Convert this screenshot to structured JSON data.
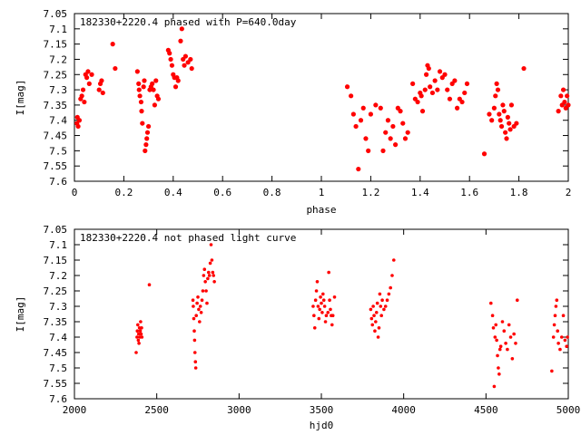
{
  "chart_data": [
    {
      "type": "scatter",
      "title": "182330+2220.4 phased with P=640.0day",
      "xlabel": "phase",
      "ylabel": "I[mag]",
      "xlim": [
        0,
        2
      ],
      "ylim": [
        7.6,
        7.05
      ],
      "y_inverted": true,
      "x_ticks": [
        "0",
        "0.2",
        "0.4",
        "0.6",
        "0.8",
        "1",
        "1.2",
        "1.4",
        "1.6",
        "1.8",
        "2"
      ],
      "y_ticks": [
        "7.05",
        "7.1",
        "7.15",
        "7.2",
        "7.25",
        "7.3",
        "7.35",
        "7.4",
        "7.45",
        "7.5",
        "7.55",
        "7.6"
      ],
      "marker_color": "#ff0000",
      "marker": "filled-circle",
      "points": [
        [
          0.01,
          7.41
        ],
        [
          0.012,
          7.39
        ],
        [
          0.015,
          7.42
        ],
        [
          0.02,
          7.4
        ],
        [
          0.025,
          7.33
        ],
        [
          0.03,
          7.32
        ],
        [
          0.035,
          7.3
        ],
        [
          0.04,
          7.34
        ],
        [
          0.045,
          7.25
        ],
        [
          0.05,
          7.26
        ],
        [
          0.055,
          7.24
        ],
        [
          0.06,
          7.28
        ],
        [
          0.07,
          7.25
        ],
        [
          0.1,
          7.3
        ],
        [
          0.105,
          7.28
        ],
        [
          0.11,
          7.27
        ],
        [
          0.115,
          7.31
        ],
        [
          0.155,
          7.15
        ],
        [
          0.165,
          7.23
        ],
        [
          0.255,
          7.24
        ],
        [
          0.26,
          7.28
        ],
        [
          0.262,
          7.3
        ],
        [
          0.265,
          7.32
        ],
        [
          0.27,
          7.34
        ],
        [
          0.272,
          7.37
        ],
        [
          0.275,
          7.41
        ],
        [
          0.28,
          7.29
        ],
        [
          0.283,
          7.27
        ],
        [
          0.286,
          7.5
        ],
        [
          0.29,
          7.48
        ],
        [
          0.293,
          7.46
        ],
        [
          0.296,
          7.44
        ],
        [
          0.3,
          7.42
        ],
        [
          0.305,
          7.3
        ],
        [
          0.31,
          7.29
        ],
        [
          0.315,
          7.28
        ],
        [
          0.32,
          7.3
        ],
        [
          0.325,
          7.35
        ],
        [
          0.33,
          7.27
        ],
        [
          0.335,
          7.32
        ],
        [
          0.34,
          7.33
        ],
        [
          0.38,
          7.17
        ],
        [
          0.385,
          7.18
        ],
        [
          0.39,
          7.2
        ],
        [
          0.395,
          7.22
        ],
        [
          0.4,
          7.25
        ],
        [
          0.405,
          7.26
        ],
        [
          0.41,
          7.29
        ],
        [
          0.415,
          7.26
        ],
        [
          0.42,
          7.27
        ],
        [
          0.43,
          7.14
        ],
        [
          0.435,
          7.1
        ],
        [
          0.44,
          7.2
        ],
        [
          0.445,
          7.22
        ],
        [
          0.45,
          7.19
        ],
        [
          0.46,
          7.21
        ],
        [
          0.47,
          7.2
        ],
        [
          0.475,
          7.23
        ],
        [
          1.105,
          7.29
        ],
        [
          1.12,
          7.32
        ],
        [
          1.13,
          7.38
        ],
        [
          1.14,
          7.42
        ],
        [
          1.15,
          7.56
        ],
        [
          1.16,
          7.4
        ],
        [
          1.17,
          7.36
        ],
        [
          1.18,
          7.46
        ],
        [
          1.19,
          7.5
        ],
        [
          1.2,
          7.38
        ],
        [
          1.22,
          7.35
        ],
        [
          1.24,
          7.36
        ],
        [
          1.25,
          7.5
        ],
        [
          1.26,
          7.44
        ],
        [
          1.27,
          7.4
        ],
        [
          1.28,
          7.46
        ],
        [
          1.29,
          7.42
        ],
        [
          1.3,
          7.48
        ],
        [
          1.31,
          7.36
        ],
        [
          1.32,
          7.37
        ],
        [
          1.33,
          7.41
        ],
        [
          1.34,
          7.46
        ],
        [
          1.35,
          7.44
        ],
        [
          1.37,
          7.28
        ],
        [
          1.38,
          7.33
        ],
        [
          1.39,
          7.34
        ],
        [
          1.4,
          7.31
        ],
        [
          1.405,
          7.32
        ],
        [
          1.41,
          7.37
        ],
        [
          1.42,
          7.3
        ],
        [
          1.425,
          7.25
        ],
        [
          1.43,
          7.22
        ],
        [
          1.435,
          7.23
        ],
        [
          1.44,
          7.29
        ],
        [
          1.45,
          7.31
        ],
        [
          1.46,
          7.27
        ],
        [
          1.47,
          7.3
        ],
        [
          1.48,
          7.24
        ],
        [
          1.49,
          7.26
        ],
        [
          1.5,
          7.25
        ],
        [
          1.51,
          7.3
        ],
        [
          1.52,
          7.33
        ],
        [
          1.53,
          7.28
        ],
        [
          1.54,
          7.27
        ],
        [
          1.55,
          7.36
        ],
        [
          1.56,
          7.33
        ],
        [
          1.57,
          7.34
        ],
        [
          1.58,
          7.31
        ],
        [
          1.59,
          7.28
        ],
        [
          1.66,
          7.51
        ],
        [
          1.68,
          7.38
        ],
        [
          1.69,
          7.4
        ],
        [
          1.7,
          7.36
        ],
        [
          1.705,
          7.32
        ],
        [
          1.71,
          7.28
        ],
        [
          1.715,
          7.3
        ],
        [
          1.72,
          7.38
        ],
        [
          1.725,
          7.4
        ],
        [
          1.73,
          7.42
        ],
        [
          1.735,
          7.35
        ],
        [
          1.74,
          7.37
        ],
        [
          1.745,
          7.44
        ],
        [
          1.75,
          7.46
        ],
        [
          1.755,
          7.39
        ],
        [
          1.76,
          7.41
        ],
        [
          1.765,
          7.43
        ],
        [
          1.77,
          7.35
        ],
        [
          1.78,
          7.42
        ],
        [
          1.79,
          7.41
        ],
        [
          1.82,
          7.23
        ],
        [
          1.96,
          7.37
        ],
        [
          1.97,
          7.32
        ],
        [
          1.975,
          7.35
        ],
        [
          1.98,
          7.3
        ],
        [
          1.985,
          7.34
        ],
        [
          1.99,
          7.36
        ],
        [
          1.995,
          7.32
        ],
        [
          2.0,
          7.35
        ]
      ]
    },
    {
      "type": "scatter",
      "title": "182330+2220.4 not phased light curve",
      "xlabel": "hjd0",
      "ylabel": "I[mag]",
      "xlim": [
        2000,
        5000
      ],
      "ylim": [
        7.6,
        7.05
      ],
      "y_inverted": true,
      "x_ticks": [
        "2000",
        "2500",
        "3000",
        "3500",
        "4000",
        "4500",
        "5000"
      ],
      "y_ticks": [
        "7.05",
        "7.1",
        "7.15",
        "7.2",
        "7.25",
        "7.3",
        "7.35",
        "7.4",
        "7.45",
        "7.5",
        "7.55",
        "7.6"
      ],
      "marker_color": "#ff0000",
      "marker": "filled-circle",
      "points": [
        [
          2375,
          7.45
        ],
        [
          2380,
          7.4
        ],
        [
          2382,
          7.38
        ],
        [
          2385,
          7.36
        ],
        [
          2388,
          7.41
        ],
        [
          2390,
          7.39
        ],
        [
          2392,
          7.42
        ],
        [
          2395,
          7.37
        ],
        [
          2398,
          7.4
        ],
        [
          2400,
          7.38
        ],
        [
          2402,
          7.35
        ],
        [
          2405,
          7.39
        ],
        [
          2408,
          7.37
        ],
        [
          2410,
          7.4
        ],
        [
          2455,
          7.23
        ],
        [
          2720,
          7.28
        ],
        [
          2722,
          7.3
        ],
        [
          2725,
          7.34
        ],
        [
          2728,
          7.38
        ],
        [
          2730,
          7.41
        ],
        [
          2732,
          7.45
        ],
        [
          2735,
          7.48
        ],
        [
          2737,
          7.5
        ],
        [
          2740,
          7.33
        ],
        [
          2745,
          7.29
        ],
        [
          2750,
          7.27
        ],
        [
          2755,
          7.31
        ],
        [
          2760,
          7.35
        ],
        [
          2765,
          7.3
        ],
        [
          2770,
          7.32
        ],
        [
          2775,
          7.28
        ],
        [
          2780,
          7.25
        ],
        [
          2785,
          7.2
        ],
        [
          2790,
          7.18
        ],
        [
          2795,
          7.22
        ],
        [
          2800,
          7.25
        ],
        [
          2805,
          7.29
        ],
        [
          2810,
          7.21
        ],
        [
          2815,
          7.19
        ],
        [
          2820,
          7.2
        ],
        [
          2825,
          7.16
        ],
        [
          2830,
          7.1
        ],
        [
          2835,
          7.15
        ],
        [
          2840,
          7.19
        ],
        [
          2845,
          7.2
        ],
        [
          2850,
          7.22
        ],
        [
          3450,
          7.3
        ],
        [
          3455,
          7.33
        ],
        [
          3460,
          7.37
        ],
        [
          3465,
          7.28
        ],
        [
          3470,
          7.25
        ],
        [
          3475,
          7.22
        ],
        [
          3480,
          7.3
        ],
        [
          3485,
          7.34
        ],
        [
          3490,
          7.31
        ],
        [
          3495,
          7.27
        ],
        [
          3500,
          7.29
        ],
        [
          3505,
          7.32
        ],
        [
          3510,
          7.26
        ],
        [
          3515,
          7.28
        ],
        [
          3520,
          7.3
        ],
        [
          3525,
          7.35
        ],
        [
          3530,
          7.33
        ],
        [
          3540,
          7.32
        ],
        [
          3545,
          7.19
        ],
        [
          3550,
          7.28
        ],
        [
          3555,
          7.31
        ],
        [
          3560,
          7.33
        ],
        [
          3565,
          7.36
        ],
        [
          3570,
          7.33
        ],
        [
          3580,
          7.27
        ],
        [
          3800,
          7.31
        ],
        [
          3805,
          7.34
        ],
        [
          3810,
          7.36
        ],
        [
          3815,
          7.3
        ],
        [
          3820,
          7.33
        ],
        [
          3825,
          7.38
        ],
        [
          3830,
          7.35
        ],
        [
          3835,
          7.32
        ],
        [
          3840,
          7.29
        ],
        [
          3845,
          7.4
        ],
        [
          3850,
          7.37
        ],
        [
          3855,
          7.26
        ],
        [
          3860,
          7.3
        ],
        [
          3865,
          7.33
        ],
        [
          3870,
          7.28
        ],
        [
          3880,
          7.31
        ],
        [
          3890,
          7.3
        ],
        [
          3900,
          7.28
        ],
        [
          3910,
          7.26
        ],
        [
          3920,
          7.24
        ],
        [
          3930,
          7.2
        ],
        [
          3940,
          7.15
        ],
        [
          4530,
          7.29
        ],
        [
          4540,
          7.33
        ],
        [
          4545,
          7.37
        ],
        [
          4550,
          7.56
        ],
        [
          4555,
          7.4
        ],
        [
          4560,
          7.36
        ],
        [
          4565,
          7.41
        ],
        [
          4570,
          7.46
        ],
        [
          4575,
          7.5
        ],
        [
          4580,
          7.52
        ],
        [
          4585,
          7.44
        ],
        [
          4590,
          7.43
        ],
        [
          4600,
          7.35
        ],
        [
          4610,
          7.38
        ],
        [
          4620,
          7.42
        ],
        [
          4630,
          7.44
        ],
        [
          4640,
          7.36
        ],
        [
          4650,
          7.4
        ],
        [
          4660,
          7.47
        ],
        [
          4670,
          7.39
        ],
        [
          4680,
          7.42
        ],
        [
          4690,
          7.28
        ],
        [
          4900,
          7.51
        ],
        [
          4910,
          7.4
        ],
        [
          4915,
          7.36
        ],
        [
          4920,
          7.33
        ],
        [
          4925,
          7.3
        ],
        [
          4930,
          7.28
        ],
        [
          4935,
          7.38
        ],
        [
          4940,
          7.42
        ],
        [
          4950,
          7.44
        ],
        [
          4960,
          7.4
        ],
        [
          4970,
          7.33
        ],
        [
          4980,
          7.41
        ],
        [
          4990,
          7.43
        ],
        [
          4995,
          7.4
        ]
      ]
    }
  ]
}
